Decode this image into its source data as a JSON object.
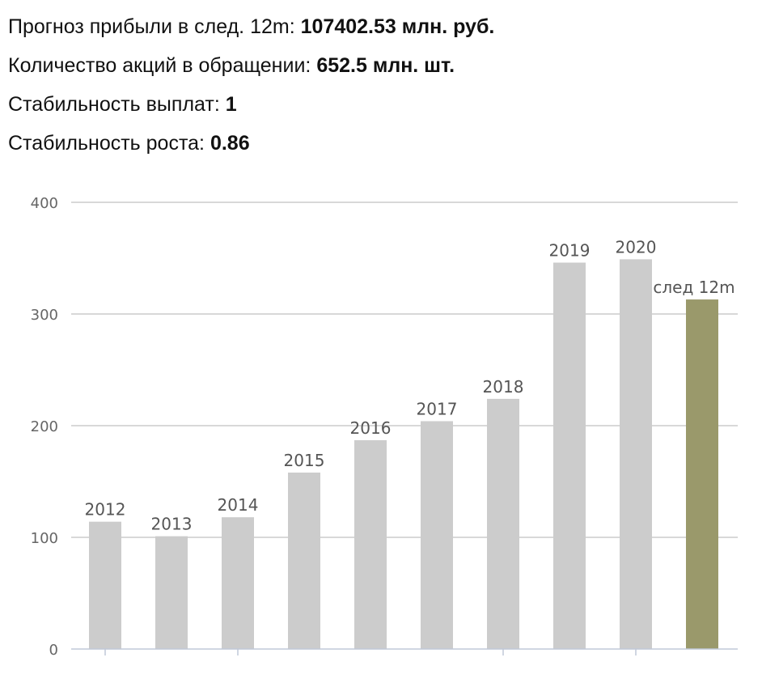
{
  "stats": [
    {
      "label": "Прогноз прибыли в след. 12m: ",
      "value": "107402.53 млн. руб."
    },
    {
      "label": "Количество акций в обращении: ",
      "value": "652.5 млн. шт."
    },
    {
      "label": "Стабильность выплат: ",
      "value": "1"
    },
    {
      "label": "Стабильность роста: ",
      "value": "0.86"
    }
  ],
  "colors": {
    "bar": "#cccccc",
    "highlight": "#9a996b",
    "grid": "#cccccc",
    "axis": "#c0c8d8"
  },
  "chart_data": {
    "type": "bar",
    "categories": [
      "2012",
      "2013",
      "2014",
      "2015",
      "2016",
      "2017",
      "2018",
      "2019",
      "2020",
      "след 12m"
    ],
    "values": [
      114,
      101,
      118,
      158,
      187,
      204,
      224,
      346,
      349,
      313
    ],
    "highlight_index": 9,
    "ylim": [
      0,
      400
    ],
    "yticks": [
      0,
      100,
      200,
      300,
      400
    ],
    "grid": true,
    "title": "",
    "xlabel": "",
    "ylabel": ""
  }
}
